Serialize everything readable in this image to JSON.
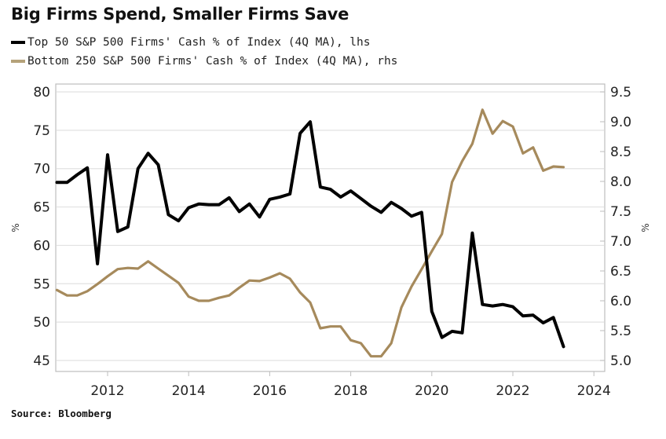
{
  "chart_data": {
    "type": "line",
    "title": "Big Firms Spend, Smaller Firms Save",
    "source": "Source: Bloomberg",
    "x_start": "2010-Q4",
    "x_end": "2023-Q2",
    "x_frequency": "quarterly",
    "x_start_year": 2010.75,
    "x_step": 0.25,
    "xlim": [
      2010.6,
      2024.3
    ],
    "xticks": [
      2012,
      2014,
      2016,
      2018,
      2020,
      2022,
      2024
    ],
    "xtick_labels": [
      "2012",
      "2014",
      "2016",
      "2018",
      "2020",
      "2022",
      "2024"
    ],
    "y_left": {
      "label": "%",
      "ylim": [
        45,
        80
      ],
      "ticks": [
        80,
        75,
        70,
        65,
        60,
        55,
        50,
        45
      ],
      "tick_labels": [
        "80",
        "75",
        "70",
        "65",
        "60",
        "55",
        "50",
        "45"
      ]
    },
    "y_right": {
      "label": "%",
      "ylim": [
        5.0,
        9.5
      ],
      "ticks": [
        9.5,
        9.0,
        8.5,
        8.0,
        7.5,
        7.0,
        6.5,
        6.0,
        5.5,
        5.0
      ],
      "tick_labels": [
        "9.5",
        "9.0",
        "8.5",
        "8.0",
        "7.5",
        "7.0",
        "6.5",
        "6.0",
        "5.5",
        "5.0"
      ]
    },
    "grid": true,
    "legend_position": "top-left",
    "series": [
      {
        "name": "Top 50 S&P 500 Firms' Cash % of Index (4Q MA), lhs",
        "axis": "left",
        "color": "#000000",
        "values": [
          68.2,
          68.2,
          69.2,
          70.1,
          57.6,
          71.8,
          61.8,
          62.4,
          70.0,
          72.0,
          70.5,
          64.0,
          63.2,
          64.9,
          65.4,
          65.3,
          65.3,
          66.2,
          64.4,
          65.4,
          63.7,
          66.0,
          66.3,
          66.7,
          74.6,
          76.1,
          67.6,
          67.3,
          66.3,
          67.1,
          66.1,
          65.1,
          64.3,
          65.6,
          64.8,
          63.8,
          64.3,
          51.4,
          48.0,
          48.8,
          48.6,
          61.6,
          52.3,
          52.1,
          52.3,
          52.0,
          50.8,
          50.9,
          49.9,
          50.6,
          46.8
        ]
      },
      {
        "name": "Bottom 250 S&P 500 Firms' Cash % of Index (4Q MA), rhs",
        "axis": "right",
        "color": "#a68a5c",
        "values": [
          6.18,
          6.09,
          6.09,
          6.16,
          6.28,
          6.41,
          6.53,
          6.55,
          6.54,
          6.66,
          6.54,
          6.42,
          6.3,
          6.07,
          6.0,
          6.0,
          6.05,
          6.09,
          6.22,
          6.34,
          6.33,
          6.39,
          6.46,
          6.37,
          6.14,
          5.97,
          5.54,
          5.57,
          5.57,
          5.34,
          5.29,
          5.07,
          5.07,
          5.29,
          5.89,
          6.24,
          6.53,
          6.83,
          7.12,
          7.99,
          8.34,
          8.63,
          9.2,
          8.8,
          9.01,
          8.92,
          8.47,
          8.57,
          8.18,
          8.25,
          8.24
        ]
      }
    ]
  }
}
